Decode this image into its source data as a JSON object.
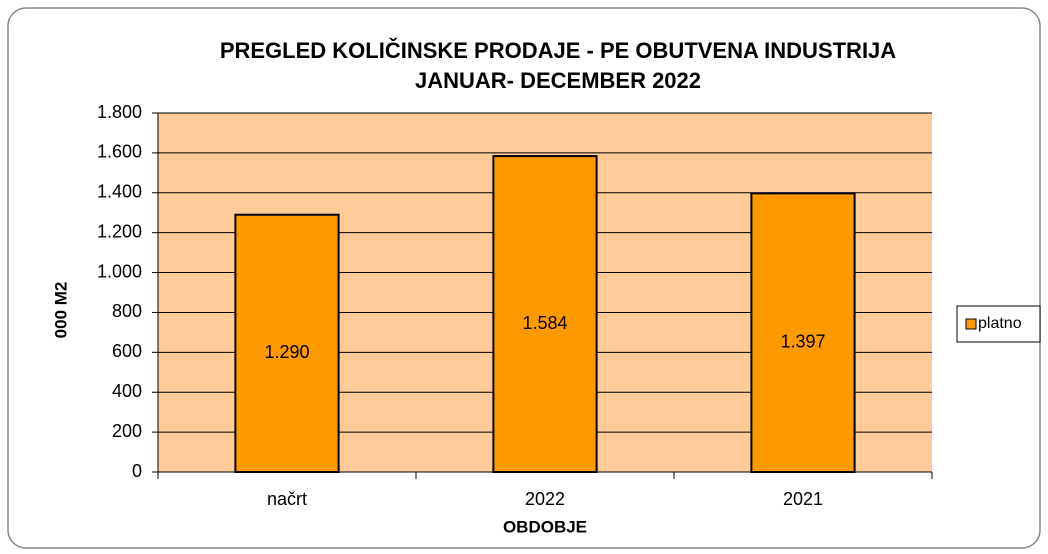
{
  "chart_data": {
    "type": "bar",
    "title": [
      "PREGLED KOLIČINSKE PRODAJE - PE OBUTVENA INDUSTRIJA",
      "JANUAR- DECEMBER 2022"
    ],
    "x_label": "OBDOBJE",
    "y_label": "000 M2",
    "categories": [
      "načrt",
      "2022",
      "2021"
    ],
    "series": [
      {
        "name": "platno",
        "color": "#ff9900",
        "values": [
          1290,
          1584,
          1397
        ],
        "value_labels": [
          "1.290",
          "1.584",
          "1.397"
        ]
      }
    ],
    "ylim": [
      0,
      1800
    ],
    "yticks": [
      0,
      200,
      400,
      600,
      800,
      {
        "value": 1000,
        "label": "1.000"
      },
      {
        "value": 1200,
        "label": "1.200"
      },
      {
        "value": 1400,
        "label": "1.400"
      },
      {
        "value": 1600,
        "label": "1.600"
      },
      {
        "value": 1800,
        "label": "1.800"
      }
    ],
    "grid": true,
    "legend": "right",
    "plot_background": "#ffcc99"
  }
}
